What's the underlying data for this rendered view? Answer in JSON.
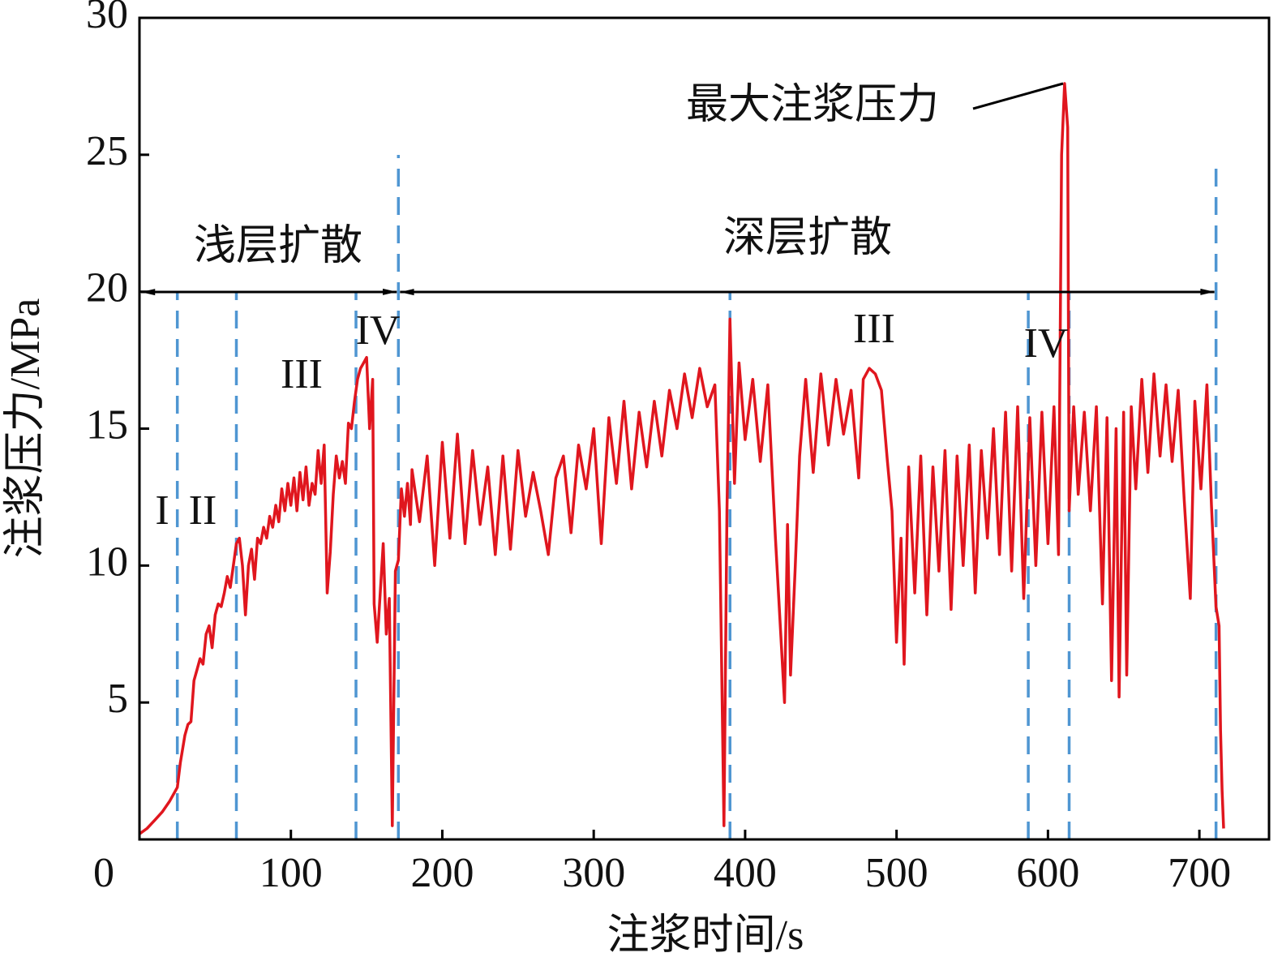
{
  "chart_data": {
    "type": "line",
    "xlabel": "注浆时间/s",
    "ylabel": "注浆压力/MPa",
    "xlim": [
      0,
      746
    ],
    "ylim": [
      0,
      30
    ],
    "xticks": [
      0,
      100,
      200,
      300,
      400,
      500,
      600,
      700
    ],
    "yticks": [
      5,
      10,
      15,
      20,
      25,
      30
    ],
    "color": "#e0161e",
    "vlines": [
      25,
      64,
      143,
      171,
      390,
      587,
      614,
      711
    ],
    "annotations": [
      "浅层扩散",
      "深层扩散",
      "I",
      "II",
      "III",
      "IV",
      "III",
      "IV",
      "最大注浆压力"
    ],
    "x": [
      0,
      5,
      10,
      15,
      20,
      25,
      27,
      30,
      32,
      34,
      36,
      38,
      40,
      42,
      44,
      46,
      48,
      50,
      52,
      54,
      56,
      58,
      60,
      62,
      64,
      66,
      68,
      70,
      72,
      74,
      76,
      78,
      80,
      82,
      84,
      86,
      88,
      90,
      92,
      94,
      96,
      98,
      100,
      102,
      104,
      106,
      108,
      110,
      112,
      114,
      116,
      118,
      120,
      122,
      124,
      126,
      128,
      130,
      132,
      134,
      136,
      138,
      140,
      142,
      144,
      146,
      148,
      150,
      152,
      154,
      155,
      157,
      159,
      161,
      163,
      165,
      167,
      169,
      171,
      173,
      175,
      177,
      179,
      180,
      185,
      190,
      195,
      200,
      205,
      210,
      215,
      220,
      225,
      230,
      235,
      240,
      245,
      250,
      255,
      260,
      265,
      270,
      275,
      280,
      285,
      290,
      295,
      300,
      305,
      310,
      315,
      320,
      325,
      330,
      335,
      340,
      345,
      350,
      355,
      360,
      365,
      370,
      375,
      380,
      383,
      386,
      388,
      390,
      393,
      396,
      400,
      405,
      410,
      415,
      420,
      423,
      426,
      428,
      430,
      433,
      436,
      440,
      445,
      450,
      455,
      460,
      465,
      470,
      475,
      478,
      482,
      486,
      490,
      494,
      497,
      500,
      503,
      505,
      508,
      512,
      516,
      520,
      524,
      528,
      532,
      536,
      540,
      544,
      548,
      552,
      556,
      560,
      564,
      568,
      572,
      576,
      580,
      584,
      588,
      592,
      596,
      600,
      604,
      607,
      609,
      611,
      613,
      614,
      617,
      620,
      624,
      628,
      632,
      636,
      639,
      642,
      645,
      647,
      650,
      652,
      655,
      658,
      662,
      666,
      670,
      674,
      678,
      682,
      686,
      690,
      694,
      697,
      701,
      705,
      708,
      711,
      713,
      714,
      715,
      716
    ],
    "values": [
      0.2,
      0.4,
      0.7,
      1.0,
      1.4,
      1.9,
      2.8,
      3.8,
      4.2,
      4.3,
      5.8,
      6.2,
      6.6,
      6.4,
      7.5,
      7.8,
      7.0,
      8.2,
      8.6,
      8.5,
      9.0,
      9.6,
      9.2,
      10.0,
      10.8,
      11.0,
      10.0,
      8.2,
      10.0,
      10.6,
      9.5,
      11.0,
      10.8,
      11.4,
      11.0,
      11.8,
      11.4,
      12.2,
      11.6,
      12.8,
      12.0,
      13.0,
      12.2,
      13.2,
      12.0,
      13.4,
      12.4,
      13.6,
      12.2,
      13.0,
      12.6,
      14.2,
      13.0,
      14.4,
      9.0,
      10.5,
      12.6,
      14.0,
      13.2,
      13.8,
      13.0,
      15.2,
      15.0,
      16.0,
      16.8,
      17.2,
      17.4,
      17.6,
      15.0,
      16.8,
      8.6,
      7.2,
      9.0,
      10.8,
      7.5,
      8.8,
      0.5,
      9.8,
      10.2,
      12.8,
      11.8,
      13.0,
      11.5,
      13.5,
      11.6,
      14.0,
      10.0,
      14.5,
      11.0,
      14.8,
      10.8,
      14.2,
      11.5,
      13.6,
      10.4,
      14.0,
      10.6,
      14.2,
      11.8,
      13.4,
      12.0,
      10.4,
      13.2,
      14.0,
      11.2,
      14.4,
      12.8,
      15.0,
      10.8,
      15.4,
      13.0,
      16.0,
      12.8,
      15.6,
      13.6,
      16.0,
      14.0,
      16.4,
      15.0,
      17.0,
      15.4,
      17.2,
      15.8,
      16.6,
      12.0,
      0.5,
      12.0,
      19.0,
      13.0,
      17.4,
      14.6,
      16.8,
      13.8,
      16.6,
      11.0,
      8.0,
      5.0,
      11.5,
      6.0,
      9.8,
      14.0,
      16.8,
      13.4,
      17.0,
      14.4,
      16.8,
      14.8,
      16.4,
      13.2,
      16.8,
      17.2,
      17.0,
      16.4,
      13.8,
      12.0,
      7.2,
      11.0,
      6.4,
      13.6,
      9.0,
      14.0,
      8.2,
      13.6,
      9.8,
      14.2,
      8.4,
      14.0,
      10.0,
      14.4,
      9.0,
      14.2,
      11.0,
      15.0,
      10.4,
      15.6,
      9.8,
      15.8,
      8.8,
      15.4,
      10.0,
      15.6,
      10.8,
      15.8,
      10.4,
      25.0,
      27.6,
      26.0,
      12.0,
      15.8,
      12.6,
      15.6,
      12.0,
      15.8,
      8.6,
      15.4,
      5.8,
      15.0,
      5.2,
      15.6,
      6.0,
      15.8,
      12.8,
      16.8,
      13.4,
      17.0,
      14.0,
      16.6,
      13.8,
      16.4,
      12.4,
      8.8,
      16.0,
      12.8,
      16.6,
      12.2,
      8.5,
      7.8,
      4.0,
      1.8,
      0.4
    ]
  }
}
